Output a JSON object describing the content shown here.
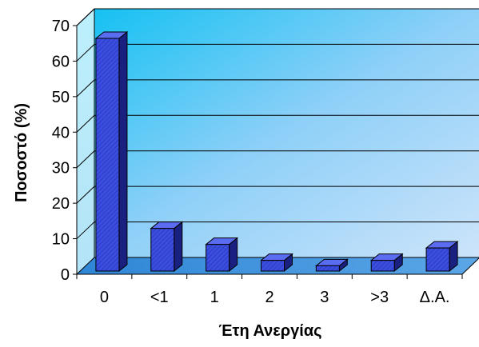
{
  "chart_data": {
    "type": "bar",
    "xlabel": "Έτη Ανεργίας",
    "ylabel": "Ποσοστό (%)",
    "categories": [
      "0",
      "<1",
      "1",
      "2",
      "3",
      ">3",
      "Δ.Α."
    ],
    "values": [
      65.5,
      12,
      7.5,
      3,
      1.5,
      3,
      6.5
    ],
    "ylim": [
      0,
      70
    ],
    "yticks": [
      "0",
      "10",
      "20",
      "30",
      "40",
      "50",
      "60",
      "70"
    ],
    "grid": true,
    "legend": "none",
    "style": "3d-bars",
    "colors": {
      "bar": "#3646d6",
      "bar_dark": "#1a2080",
      "wall_light": "#20c8f4",
      "wall_pale": "#cfe8fb",
      "floor": "#3a8ed8"
    }
  }
}
